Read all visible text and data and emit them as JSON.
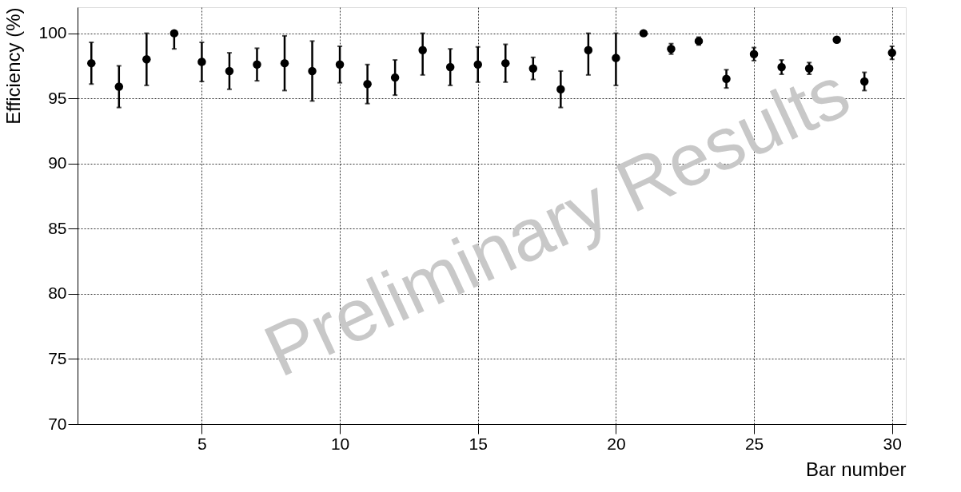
{
  "chart_data": {
    "type": "scatter",
    "xlabel": "Bar number",
    "ylabel": "Efficiency (%)",
    "x": [
      1,
      2,
      3,
      4,
      5,
      6,
      7,
      8,
      9,
      10,
      11,
      12,
      13,
      14,
      15,
      16,
      17,
      18,
      19,
      20,
      21,
      22,
      23,
      24,
      25,
      26,
      27,
      28,
      29,
      30
    ],
    "series": [
      {
        "color": "#000000",
        "values": [
          97.7,
          95.9,
          98.0,
          100.0,
          97.8,
          97.1,
          97.6,
          97.7,
          97.1,
          97.6,
          96.1,
          96.6,
          98.7,
          97.4,
          97.6,
          97.7,
          97.3,
          95.7,
          98.7,
          98.1,
          100.0,
          98.8,
          99.4,
          96.5,
          98.4,
          97.4,
          97.3,
          99.5,
          96.3,
          98.5
        ],
        "errors": [
          1.6,
          1.6,
          2.0,
          [
            98.8,
            100.0
          ],
          1.5,
          1.4,
          1.25,
          2.1,
          2.3,
          1.4,
          1.5,
          1.35,
          [
            96.8,
            100.0
          ],
          1.4,
          1.35,
          1.45,
          0.85,
          1.4,
          [
            96.8,
            100.0
          ],
          [
            96.0,
            100.0
          ],
          null,
          0.4,
          0.3,
          0.7,
          0.5,
          0.55,
          0.45,
          null,
          0.7,
          0.5
        ]
      }
    ],
    "marker": "circle",
    "xlim": [
      0.5,
      30.5
    ],
    "ylim": [
      70,
      102
    ],
    "xticks": [
      5,
      10,
      15,
      20,
      25,
      30
    ],
    "yticks": [
      70,
      75,
      80,
      85,
      90,
      95,
      100
    ],
    "grid": true,
    "annotations": [
      "Preliminary Results"
    ]
  }
}
